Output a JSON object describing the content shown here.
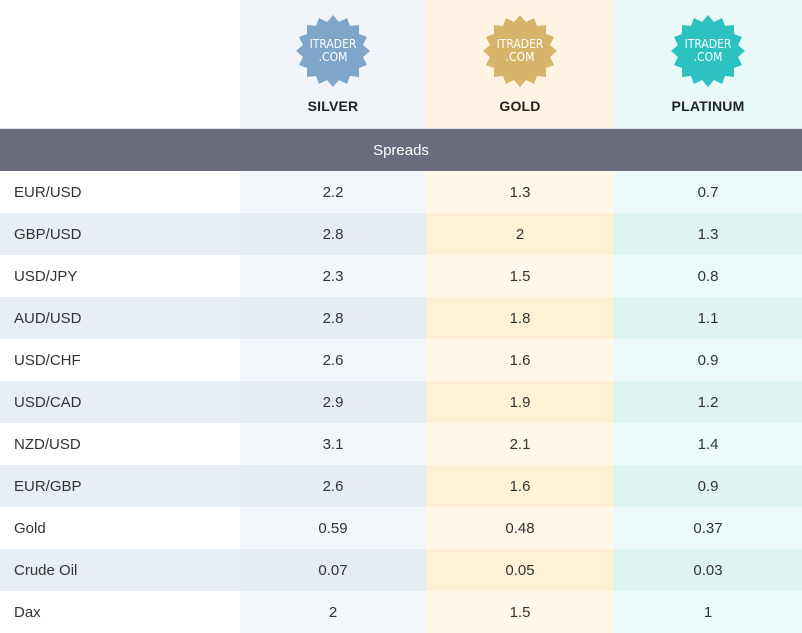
{
  "plans": [
    {
      "logo_line1": "ITRADER",
      "logo_line2": ".COM",
      "name": "SILVER",
      "color": "#7fa6c9"
    },
    {
      "logo_line1": "ITRADER",
      "logo_line2": ".COM",
      "name": "GOLD",
      "color": "#d6b56a"
    },
    {
      "logo_line1": "ITRADER",
      "logo_line2": ".COM",
      "name": "PLATINUM",
      "color": "#2bc2c0"
    }
  ],
  "section_title": "Spreads",
  "rows": [
    {
      "label": "EUR/USD",
      "silver": "2.2",
      "gold": "1.3",
      "platinum": "0.7"
    },
    {
      "label": "GBP/USD",
      "silver": "2.8",
      "gold": "2",
      "platinum": "1.3"
    },
    {
      "label": "USD/JPY",
      "silver": "2.3",
      "gold": "1.5",
      "platinum": "0.8"
    },
    {
      "label": "AUD/USD",
      "silver": "2.8",
      "gold": "1.8",
      "platinum": "1.1"
    },
    {
      "label": "USD/CHF",
      "silver": "2.6",
      "gold": "1.6",
      "platinum": "0.9"
    },
    {
      "label": "USD/CAD",
      "silver": "2.9",
      "gold": "1.9",
      "platinum": "1.2"
    },
    {
      "label": "NZD/USD",
      "silver": "3.1",
      "gold": "2.1",
      "platinum": "1.4"
    },
    {
      "label": "EUR/GBP",
      "silver": "2.6",
      "gold": "1.6",
      "platinum": "0.9"
    },
    {
      "label": "Gold",
      "silver": "0.59",
      "gold": "0.48",
      "platinum": "0.37"
    },
    {
      "label": "Crude Oil",
      "silver": "0.07",
      "gold": "0.05",
      "platinum": "0.03"
    },
    {
      "label": "Dax",
      "silver": "2",
      "gold": "1.5",
      "platinum": "1"
    }
  ]
}
